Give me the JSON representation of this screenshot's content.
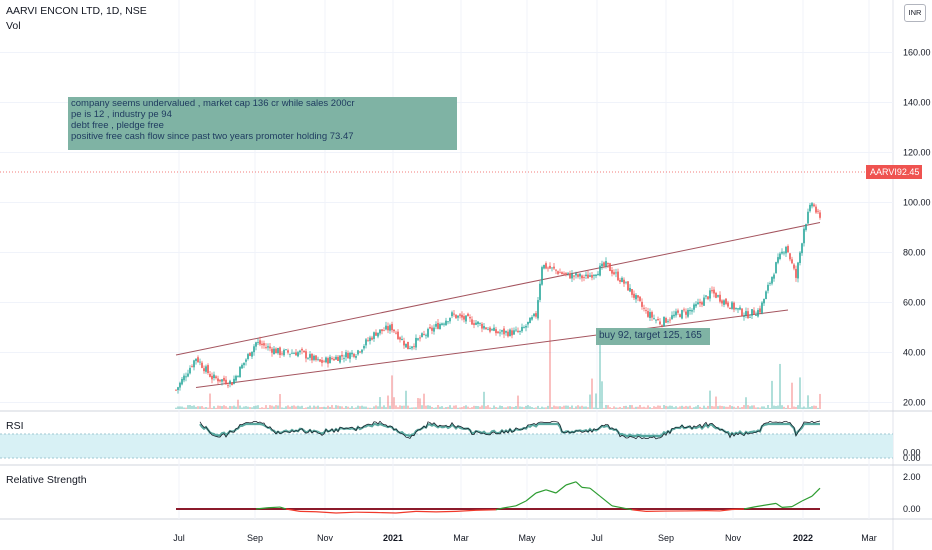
{
  "header": {
    "symbol_line": "AARVI ENCON LTD, 1D, NSE",
    "volume_label": "Vol",
    "currency_badge": "INR"
  },
  "price_tag": {
    "symbol": "AARVI",
    "value": "92.45"
  },
  "notes": {
    "analysis": [
      "company seems undervalued , market cap 136 cr while sales 200cr",
      "pe is 12 , industry pe 94",
      "debt free , pledge free",
      "positive free cash flow since past two years promoter holding 73.47"
    ],
    "trade": "buy 92, target 125, 165"
  },
  "panes": {
    "rsi_label": "RSI",
    "rs_label": "Relative Strength"
  },
  "colors": {
    "up": "#26a69a",
    "down": "#ef5350",
    "channel": "#a4545e",
    "note_bg": "#7fb3a4",
    "rsi_band": "#d8f1f5",
    "rsi_ma": "#3e9a8f",
    "rs_up": "#2e9d32",
    "rs_down": "#f0392b"
  },
  "chart_data": [
    {
      "type": "candlestick",
      "title": "AARVI ENCON LTD, 1D, NSE",
      "x_ticks": [
        "Jul",
        "Sep",
        "Nov",
        "2021",
        "Mar",
        "May",
        "Jul",
        "Sep",
        "Nov",
        "2022",
        "Mar"
      ],
      "y_ticks": [
        "160.00",
        "140.00",
        "120.00",
        "100.00",
        "80.00",
        "60.00",
        "40.00",
        "20.00",
        "0.00"
      ],
      "ylim": [
        0,
        160
      ],
      "last_price": 92.45,
      "close_path": [
        [
          0,
          25
        ],
        [
          10,
          38
        ],
        [
          18,
          30
        ],
        [
          28,
          28
        ],
        [
          40,
          44
        ],
        [
          52,
          40
        ],
        [
          62,
          40
        ],
        [
          72,
          36
        ],
        [
          80,
          38
        ],
        [
          90,
          40
        ],
        [
          100,
          48
        ],
        [
          108,
          50
        ],
        [
          116,
          42
        ],
        [
          126,
          48
        ],
        [
          138,
          55
        ],
        [
          150,
          52
        ],
        [
          160,
          48
        ],
        [
          172,
          48
        ],
        [
          180,
          55
        ],
        [
          183,
          75
        ],
        [
          195,
          71
        ],
        [
          205,
          70
        ],
        [
          215,
          75
        ],
        [
          225,
          67
        ],
        [
          235,
          56
        ],
        [
          242,
          52
        ],
        [
          250,
          55
        ],
        [
          258,
          57
        ],
        [
          268,
          64
        ],
        [
          275,
          60
        ],
        [
          285,
          55
        ],
        [
          292,
          57
        ],
        [
          300,
          75
        ],
        [
          305,
          83
        ],
        [
          310,
          70
        ],
        [
          314,
          90
        ],
        [
          318,
          100
        ],
        [
          322,
          93
        ]
      ],
      "channel_upper": [
        [
          0,
          39
        ],
        [
          322,
          92
        ]
      ],
      "channel_lower": [
        [
          10,
          26
        ],
        [
          306,
          57
        ]
      ]
    },
    {
      "type": "bar",
      "series": [
        {
          "name": "Vol",
          "values": []
        }
      ]
    },
    {
      "type": "line",
      "title": "RSI",
      "y_ticks": [
        "0.00"
      ]
    },
    {
      "type": "line",
      "title": "Relative Strength",
      "y_ticks": [
        "2.00",
        "0.00"
      ],
      "values": [
        [
          40,
          0.0
        ],
        [
          46,
          0.08
        ],
        [
          52,
          0.12
        ],
        [
          55,
          0.0
        ],
        [
          62,
          -0.15
        ],
        [
          70,
          -0.17
        ],
        [
          80,
          -0.25
        ],
        [
          90,
          -0.2
        ],
        [
          100,
          -0.22
        ],
        [
          110,
          -0.25
        ],
        [
          120,
          -0.15
        ],
        [
          130,
          -0.18
        ],
        [
          140,
          -0.15
        ],
        [
          150,
          -0.08
        ],
        [
          160,
          -0.05
        ],
        [
          163,
          0.05
        ],
        [
          170,
          0.2
        ],
        [
          175,
          0.5
        ],
        [
          180,
          1.0
        ],
        [
          185,
          1.2
        ],
        [
          190,
          1.0
        ],
        [
          195,
          1.5
        ],
        [
          200,
          1.7
        ],
        [
          203,
          1.35
        ],
        [
          207,
          1.3
        ],
        [
          212,
          0.8
        ],
        [
          218,
          0.2
        ],
        [
          224,
          0.05
        ],
        [
          228,
          -0.05
        ],
        [
          235,
          -0.15
        ],
        [
          245,
          -0.13
        ],
        [
          255,
          -0.12
        ],
        [
          265,
          -0.1
        ],
        [
          272,
          -0.12
        ],
        [
          278,
          -0.03
        ],
        [
          284,
          0.0
        ],
        [
          290,
          0.15
        ],
        [
          300,
          0.35
        ],
        [
          303,
          0.1
        ],
        [
          308,
          0.15
        ],
        [
          313,
          0.5
        ],
        [
          318,
          0.8
        ],
        [
          322,
          1.3
        ]
      ]
    }
  ]
}
